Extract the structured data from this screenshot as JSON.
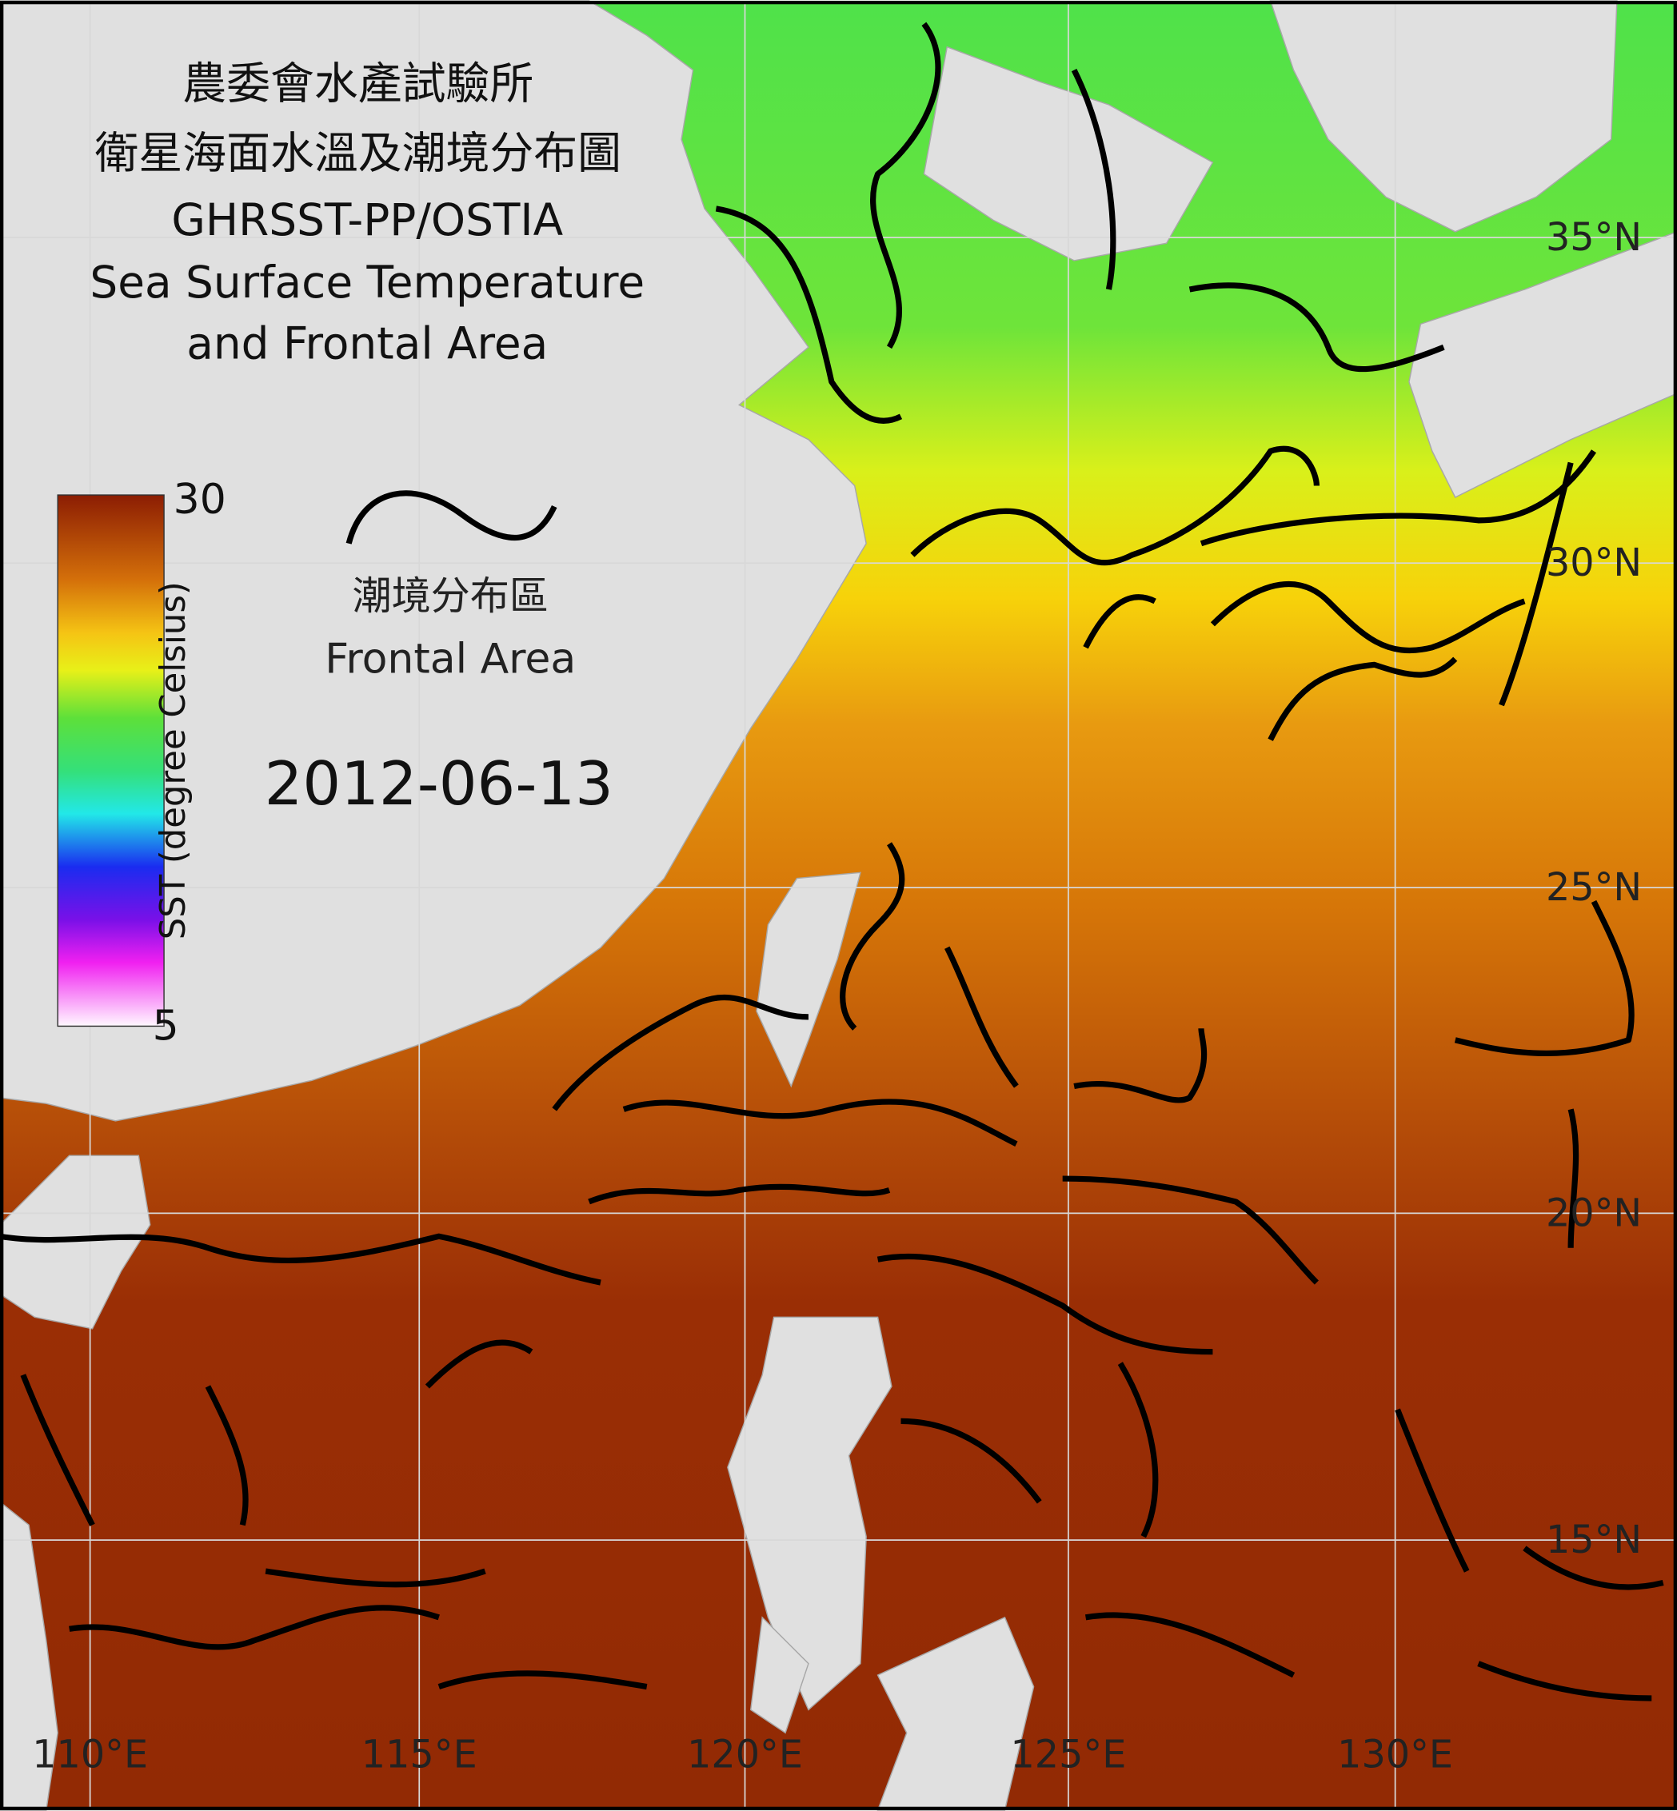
{
  "title_lines": [
    "農委會水產試驗所",
    "衛星海面水溫及潮境分布圖",
    "GHRSST-PP/OSTIA",
    "Sea Surface Temperature",
    "and Frontal Area"
  ],
  "colorbar": {
    "max": 30,
    "min": 5,
    "label": "SST (degree Celsius)"
  },
  "legend": {
    "label_zh": "潮境分布區",
    "label_en": "Frontal Area"
  },
  "date": "2012-06-13",
  "lat_labels": [
    "35°N",
    "30°N",
    "25°N",
    "20°N",
    "15°N"
  ],
  "lon_labels": [
    "110°E",
    "115°E",
    "120°E",
    "125°E",
    "130°E"
  ]
}
